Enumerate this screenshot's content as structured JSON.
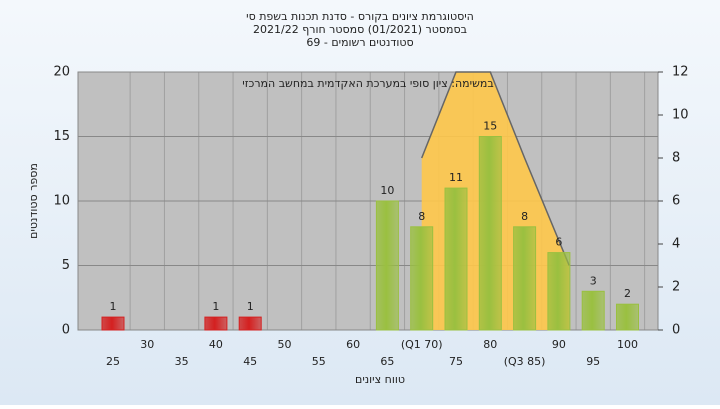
{
  "chart_data": {
    "type": "bar",
    "title": "היסטוגרמת ציונים בקורס - סדנת תכנות בשפת סי",
    "subtitle": "בסמסטר  (01/2021)  סמסטר חורף 2021/22",
    "subtitle2": "סטודנטים רשומים - 69",
    "annotation": "במשימה: ציון סופי במערכת האקדמית במחשב המרכזי",
    "ylabel": "מספר סטודנטים",
    "xlabel": "טווח ציונים",
    "categories": [
      "25",
      "30",
      "35",
      "40",
      "45",
      "50",
      "55",
      "60",
      "65",
      "(Q1 70)",
      "75",
      "80",
      "(Q3 85)",
      "90",
      "95",
      "100"
    ],
    "values": [
      1,
      0,
      0,
      1,
      1,
      0,
      0,
      0,
      10,
      8,
      11,
      15,
      8,
      6,
      3,
      2
    ],
    "colors": [
      "#d42020",
      "#d42020",
      "#d42020",
      "#d42020",
      "#d42020",
      "#d42020",
      "#d42020",
      "#9ac040",
      "#9ac040",
      "#9ac040",
      "#9ac040",
      "#9ac040",
      "#9ac040",
      "#9ac040",
      "#9ac040",
      "#9ac040"
    ],
    "ylim": [
      0,
      20
    ],
    "yticks": [
      0,
      5,
      10,
      15,
      20
    ],
    "y2lim": [
      0,
      12
    ],
    "y2ticks": [
      0,
      2,
      4,
      6,
      8,
      10,
      12
    ],
    "curve": {
      "axis": "y2",
      "color": "#ffc84a",
      "x_index": [
        9,
        10,
        11,
        12,
        13.3
      ],
      "values": [
        8,
        12,
        12,
        8,
        3
      ]
    },
    "grid": true
  }
}
